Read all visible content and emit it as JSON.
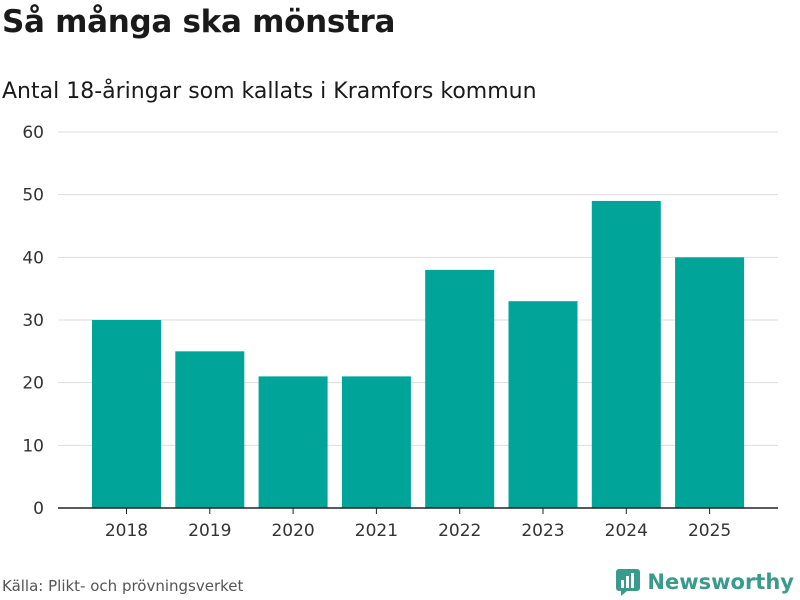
{
  "header": {
    "title": "Så många ska mönstra",
    "subtitle": "Antal 18-åringar som kallats i Kramfors kommun"
  },
  "footer": {
    "source": "Källa: Plikt- och prövningsverket",
    "brand": "Newsworthy",
    "brand_icon": "newsworthy-logo-icon"
  },
  "colors": {
    "bar": "#00a499",
    "grid": "#dddddd",
    "axis": "#222222",
    "brand": "#3a9a8c"
  },
  "chart_data": {
    "type": "bar",
    "title": "Så många ska mönstra",
    "subtitle": "Antal 18-åringar som kallats i Kramfors kommun",
    "xlabel": "",
    "ylabel": "",
    "categories": [
      "2018",
      "2019",
      "2020",
      "2021",
      "2022",
      "2023",
      "2024",
      "2025"
    ],
    "values": [
      30,
      25,
      21,
      21,
      38,
      33,
      49,
      40
    ],
    "ylim": [
      0,
      60
    ],
    "yticks": [
      0,
      10,
      20,
      30,
      40,
      50,
      60
    ],
    "grid": true,
    "legend": "none"
  }
}
